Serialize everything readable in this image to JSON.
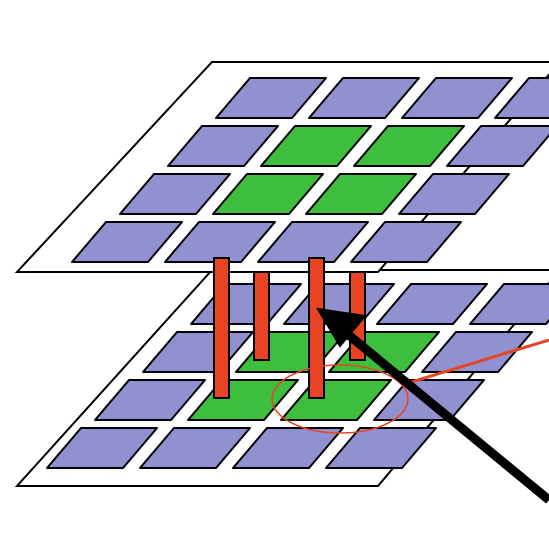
{
  "diagram": {
    "kind": "stacked-grid-layers-with-vertical-connectors",
    "layers": [
      {
        "name": "top-layer",
        "rows": 4,
        "cols": 4,
        "green_cells": [
          [
            1,
            1
          ],
          [
            1,
            2
          ],
          [
            2,
            1
          ],
          [
            2,
            2
          ]
        ]
      },
      {
        "name": "bottom-layer",
        "rows": 4,
        "cols": 4,
        "green_cells": [
          [
            1,
            1
          ],
          [
            1,
            2
          ],
          [
            2,
            1
          ],
          [
            2,
            2
          ]
        ]
      }
    ],
    "connector_count": 4,
    "colors": {
      "cell_default": "#9191d2",
      "cell_highlight": "#3dbe3d",
      "connector": "#e84322",
      "circle": "#e84322",
      "arrow": "#000000",
      "stroke": "#000000",
      "plane_fill": "#ffffff"
    }
  }
}
